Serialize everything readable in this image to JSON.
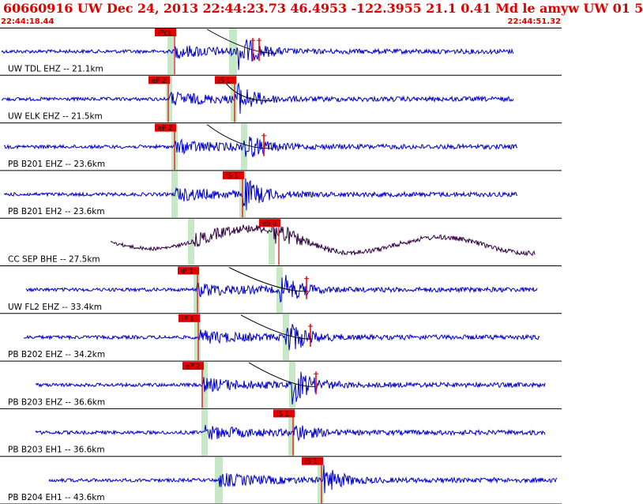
{
  "header": {
    "title": "60660916 UW Dec 24, 2013 22:44:23.73    46.4953 -122.3955 21.1 0.41 Md le amyw UW 01    5",
    "time_start": "22:44:18.44",
    "time_end": "22:44:51.32"
  },
  "chart_data": {
    "type": "seismogram",
    "x_range": [
      "22:44:18.44",
      "22:44:51.32"
    ],
    "colors": {
      "trace": "#0000cc",
      "trace_alt": "#300040",
      "pick": "#e00000",
      "window": "#c6e8c6",
      "curve": "#000000"
    },
    "traces": [
      {
        "label": "UW TDL EHZ -- 21.1km",
        "picks": [
          {
            "label": "iPc1"
          }
        ],
        "color": "trace"
      },
      {
        "label": "UW ELK EHZ -- 21.5km",
        "picks": [
          {
            "label": "eP 2"
          },
          {
            "label": "iS 1"
          }
        ],
        "color": "trace"
      },
      {
        "label": "PB B201 EHZ -- 23.6km",
        "picks": [
          {
            "label": "eP 2"
          }
        ],
        "color": "trace"
      },
      {
        "label": "PB B201 EH2 -- 23.6km",
        "picks": [
          {
            "label": "iS 1"
          }
        ],
        "color": "trace"
      },
      {
        "label": "CC SEP BHE -- 27.5km",
        "picks": [
          {
            "label": "eS 2"
          }
        ],
        "color": "trace_alt"
      },
      {
        "label": "UW FL2 EHZ -- 33.4km",
        "picks": [
          {
            "label": "iP 1"
          }
        ],
        "color": "trace"
      },
      {
        "label": "PB B202 EHZ -- 34.2km",
        "picks": [
          {
            "label": "iP 1"
          }
        ],
        "color": "trace"
      },
      {
        "label": "PB B203 EHZ -- 36.6km",
        "picks": [
          {
            "label": "eP 2"
          }
        ],
        "color": "trace"
      },
      {
        "label": "PB B203 EH1 -- 36.6km",
        "picks": [
          {
            "label": "iS 1"
          }
        ],
        "color": "trace"
      },
      {
        "label": "PB B204 EH1 -- 43.6km",
        "picks": [
          {
            "label": "iS 1"
          }
        ],
        "color": "trace"
      }
    ]
  }
}
